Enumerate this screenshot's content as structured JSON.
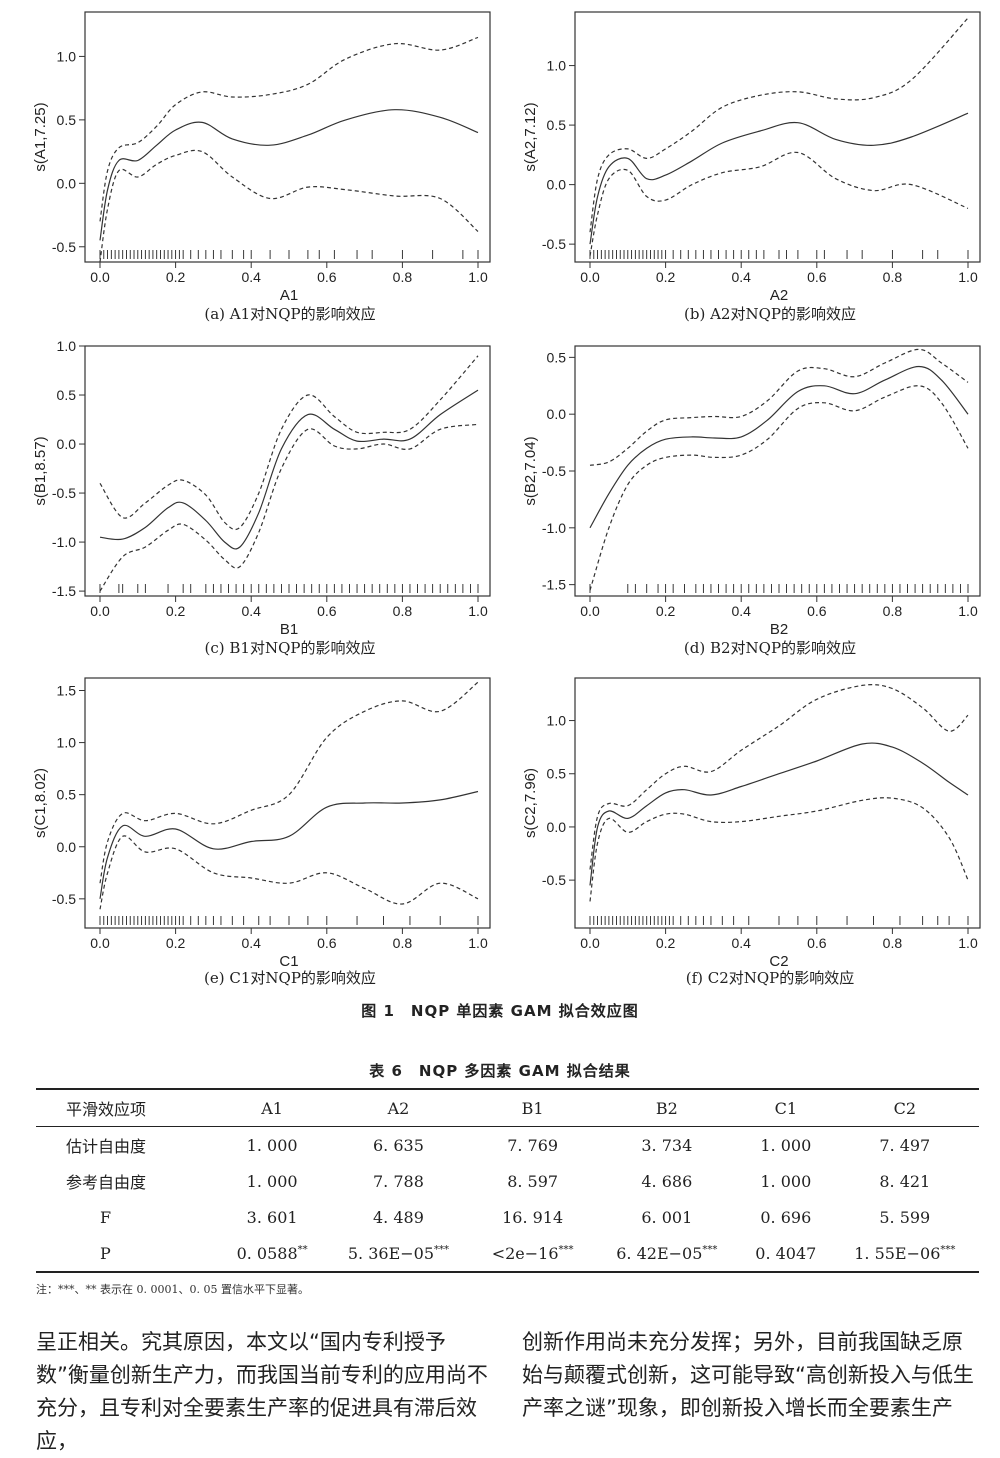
{
  "figure": {
    "title": "图 1　NQP 单因素 GAM 拟合效应图",
    "panels": [
      {
        "caption": "(a) A1对NQP的影响效应",
        "xlabel": "A1",
        "ylabel": "s(A1,7.25)"
      },
      {
        "caption": "(b) A2对NQP的影响效应",
        "xlabel": "A2",
        "ylabel": "s(A2,7.12)"
      },
      {
        "caption": "(c) B1对NQP的影响效应",
        "xlabel": "B1",
        "ylabel": "s(B1,8.57)"
      },
      {
        "caption": "(d) B2对NQP的影响效应",
        "xlabel": "B2",
        "ylabel": "s(B2,7.04)"
      },
      {
        "caption": "(e) C1对NQP的影响效应",
        "xlabel": "C1",
        "ylabel": "s(C1,8.02)"
      },
      {
        "caption": "(f) C2对NQP的影响效应",
        "xlabel": "C2",
        "ylabel": "s(C2,7.96)"
      }
    ]
  },
  "chart_data": [
    {
      "type": "line",
      "xlabel": "A1",
      "ylabel": "s(A1,7.25)",
      "xlim": [
        0,
        1
      ],
      "ylim": [
        -0.62,
        1.35
      ],
      "xticks": [
        "0.0",
        "0.2",
        "0.4",
        "0.6",
        "0.8",
        "1.0"
      ],
      "yticks": [
        "-0.5",
        "0.0",
        "0.5",
        "1.0"
      ],
      "x": [
        0,
        0.02,
        0.05,
        0.1,
        0.15,
        0.2,
        0.27,
        0.35,
        0.45,
        0.55,
        0.65,
        0.78,
        0.9,
        1.0
      ],
      "series": [
        {
          "values": [
            -0.45,
            -0.05,
            0.18,
            0.18,
            0.3,
            0.42,
            0.48,
            0.35,
            0.3,
            0.38,
            0.5,
            0.58,
            0.52,
            0.4
          ]
        },
        {
          "values": [
            -0.3,
            0.1,
            0.28,
            0.32,
            0.45,
            0.62,
            0.72,
            0.68,
            0.7,
            0.78,
            0.98,
            1.1,
            1.05,
            1.15
          ]
        },
        {
          "values": [
            -0.62,
            -0.2,
            0.1,
            0.05,
            0.15,
            0.22,
            0.25,
            0.05,
            -0.12,
            -0.03,
            -0.05,
            -0.1,
            -0.12,
            -0.38
          ]
        }
      ],
      "rug": [
        0.0,
        0.01,
        0.02,
        0.03,
        0.04,
        0.05,
        0.06,
        0.07,
        0.08,
        0.09,
        0.1,
        0.11,
        0.12,
        0.13,
        0.14,
        0.15,
        0.16,
        0.17,
        0.18,
        0.19,
        0.2,
        0.21,
        0.22,
        0.24,
        0.26,
        0.28,
        0.3,
        0.32,
        0.35,
        0.38,
        0.4,
        0.45,
        0.5,
        0.55,
        0.58,
        0.62,
        0.68,
        0.72,
        0.8,
        0.88,
        0.96,
        1.0
      ]
    },
    {
      "type": "line",
      "xlabel": "A2",
      "ylabel": "s(A2,7.12)",
      "xlim": [
        0,
        1
      ],
      "ylim": [
        -0.65,
        1.45
      ],
      "xticks": [
        "0.0",
        "0.2",
        "0.4",
        "0.6",
        "0.8",
        "1.0"
      ],
      "yticks": [
        "-0.5",
        "0.0",
        "0.5",
        "1.0"
      ],
      "x": [
        0,
        0.02,
        0.05,
        0.1,
        0.15,
        0.2,
        0.27,
        0.35,
        0.45,
        0.55,
        0.65,
        0.75,
        0.85,
        1.0
      ],
      "series": [
        {
          "values": [
            -0.5,
            -0.1,
            0.15,
            0.22,
            0.05,
            0.08,
            0.2,
            0.35,
            0.45,
            0.52,
            0.38,
            0.33,
            0.4,
            0.6
          ]
        },
        {
          "values": [
            -0.4,
            0.05,
            0.25,
            0.3,
            0.22,
            0.3,
            0.45,
            0.65,
            0.75,
            0.78,
            0.72,
            0.73,
            0.88,
            1.4
          ]
        },
        {
          "values": [
            -0.6,
            -0.25,
            0.05,
            0.12,
            -0.1,
            -0.13,
            0.0,
            0.1,
            0.15,
            0.27,
            0.05,
            -0.05,
            0.0,
            -0.2
          ]
        }
      ],
      "rug": [
        0.0,
        0.01,
        0.02,
        0.03,
        0.04,
        0.05,
        0.06,
        0.07,
        0.08,
        0.09,
        0.1,
        0.11,
        0.12,
        0.13,
        0.14,
        0.15,
        0.16,
        0.17,
        0.18,
        0.19,
        0.2,
        0.22,
        0.24,
        0.26,
        0.28,
        0.3,
        0.32,
        0.34,
        0.36,
        0.38,
        0.4,
        0.42,
        0.44,
        0.46,
        0.5,
        0.52,
        0.55,
        0.6,
        0.62,
        0.68,
        0.72,
        0.8,
        0.88,
        0.92,
        1.0
      ]
    },
    {
      "type": "line",
      "xlabel": "B1",
      "ylabel": "s(B1,8.57)",
      "xlim": [
        0,
        1
      ],
      "ylim": [
        -1.55,
        1.0
      ],
      "xticks": [
        "0.0",
        "0.2",
        "0.4",
        "0.6",
        "0.8",
        "1.0"
      ],
      "yticks": [
        "-1.5",
        "-1.0",
        "-0.5",
        "0.0",
        "0.5",
        "1.0"
      ],
      "x": [
        0,
        0.06,
        0.12,
        0.18,
        0.22,
        0.28,
        0.33,
        0.37,
        0.42,
        0.48,
        0.55,
        0.62,
        0.68,
        0.75,
        0.82,
        0.9,
        1.0
      ],
      "series": [
        {
          "values": [
            -0.95,
            -0.97,
            -0.85,
            -0.65,
            -0.6,
            -0.78,
            -1.0,
            -1.05,
            -0.7,
            -0.05,
            0.3,
            0.15,
            0.03,
            0.05,
            0.05,
            0.3,
            0.55
          ]
        },
        {
          "values": [
            -0.4,
            -0.75,
            -0.6,
            -0.42,
            -0.37,
            -0.52,
            -0.8,
            -0.85,
            -0.5,
            0.15,
            0.5,
            0.28,
            0.12,
            0.12,
            0.15,
            0.45,
            0.9
          ]
        },
        {
          "values": [
            -1.5,
            -1.15,
            -1.05,
            -0.88,
            -0.82,
            -0.98,
            -1.18,
            -1.25,
            -0.9,
            -0.25,
            0.15,
            -0.02,
            -0.05,
            0.0,
            -0.05,
            0.15,
            0.2
          ]
        }
      ],
      "rug": [
        0.0,
        0.05,
        0.06,
        0.1,
        0.12,
        0.18,
        0.22,
        0.24,
        0.28,
        0.3,
        0.32,
        0.34,
        0.36,
        0.38,
        0.4,
        0.42,
        0.44,
        0.46,
        0.48,
        0.5,
        0.52,
        0.54,
        0.56,
        0.58,
        0.6,
        0.62,
        0.64,
        0.66,
        0.68,
        0.7,
        0.72,
        0.74,
        0.76,
        0.78,
        0.8,
        0.82,
        0.84,
        0.86,
        0.88,
        0.9,
        0.92,
        0.94,
        0.96,
        0.98,
        1.0
      ]
    },
    {
      "type": "line",
      "xlabel": "B2",
      "ylabel": "s(B2,7.04)",
      "xlim": [
        0,
        1
      ],
      "ylim": [
        -1.6,
        0.6
      ],
      "xticks": [
        "0.0",
        "0.2",
        "0.4",
        "0.6",
        "0.8",
        "1.0"
      ],
      "yticks": [
        "-1.5",
        "-1.0",
        "-0.5",
        "0.0",
        "0.5"
      ],
      "x": [
        0,
        0.05,
        0.1,
        0.15,
        0.2,
        0.27,
        0.33,
        0.4,
        0.47,
        0.55,
        0.62,
        0.7,
        0.78,
        0.87,
        0.93,
        1.0
      ],
      "series": [
        {
          "values": [
            -1.0,
            -0.7,
            -0.45,
            -0.3,
            -0.22,
            -0.2,
            -0.21,
            -0.2,
            -0.05,
            0.2,
            0.25,
            0.18,
            0.3,
            0.42,
            0.3,
            0.0
          ]
        },
        {
          "values": [
            -0.45,
            -0.42,
            -0.3,
            -0.15,
            -0.05,
            -0.03,
            -0.02,
            -0.02,
            0.12,
            0.38,
            0.4,
            0.33,
            0.45,
            0.57,
            0.45,
            0.28
          ]
        },
        {
          "values": [
            -1.55,
            -1.0,
            -0.62,
            -0.45,
            -0.38,
            -0.36,
            -0.38,
            -0.36,
            -0.22,
            0.05,
            0.1,
            0.03,
            0.15,
            0.25,
            0.1,
            -0.3
          ]
        }
      ],
      "rug": [
        0.0,
        0.1,
        0.12,
        0.15,
        0.18,
        0.2,
        0.22,
        0.25,
        0.28,
        0.3,
        0.32,
        0.34,
        0.36,
        0.38,
        0.4,
        0.42,
        0.44,
        0.46,
        0.48,
        0.5,
        0.52,
        0.54,
        0.56,
        0.58,
        0.6,
        0.62,
        0.64,
        0.66,
        0.68,
        0.7,
        0.72,
        0.74,
        0.76,
        0.78,
        0.8,
        0.82,
        0.84,
        0.86,
        0.88,
        0.9,
        0.92,
        0.94,
        0.96,
        0.98,
        1.0
      ]
    },
    {
      "type": "line",
      "xlabel": "C1",
      "ylabel": "s(C1,8.02)",
      "xlim": [
        0,
        1
      ],
      "ylim": [
        -0.78,
        1.62
      ],
      "xticks": [
        "0.0",
        "0.2",
        "0.4",
        "0.6",
        "0.8",
        "1.0"
      ],
      "yticks": [
        "-0.5",
        "0.0",
        "0.5",
        "1.0",
        "1.5"
      ],
      "x": [
        0,
        0.02,
        0.06,
        0.12,
        0.2,
        0.3,
        0.4,
        0.5,
        0.6,
        0.7,
        0.8,
        0.9,
        1.0
      ],
      "series": [
        {
          "values": [
            -0.5,
            -0.1,
            0.2,
            0.1,
            0.17,
            -0.02,
            0.05,
            0.1,
            0.38,
            0.42,
            0.42,
            0.45,
            0.53
          ]
        },
        {
          "values": [
            -0.35,
            0.05,
            0.32,
            0.25,
            0.32,
            0.22,
            0.35,
            0.5,
            1.05,
            1.3,
            1.4,
            1.3,
            1.58
          ]
        },
        {
          "values": [
            -0.6,
            -0.25,
            0.1,
            -0.05,
            -0.02,
            -0.25,
            -0.3,
            -0.35,
            -0.25,
            -0.4,
            -0.55,
            -0.35,
            -0.5
          ]
        }
      ],
      "rug": [
        0.0,
        0.01,
        0.02,
        0.03,
        0.04,
        0.05,
        0.06,
        0.07,
        0.08,
        0.09,
        0.1,
        0.11,
        0.12,
        0.13,
        0.14,
        0.15,
        0.16,
        0.17,
        0.18,
        0.19,
        0.2,
        0.21,
        0.22,
        0.24,
        0.26,
        0.28,
        0.3,
        0.32,
        0.35,
        0.38,
        0.42,
        0.45,
        0.5,
        0.55,
        0.6,
        0.68,
        0.75,
        0.82,
        0.9,
        1.0
      ]
    },
    {
      "type": "line",
      "xlabel": "C2",
      "ylabel": "s(C2,7.96)",
      "xlim": [
        0,
        1
      ],
      "ylim": [
        -0.95,
        1.4
      ],
      "xticks": [
        "0.0",
        "0.2",
        "0.4",
        "0.6",
        "0.8",
        "1.0"
      ],
      "yticks": [
        "-0.5",
        "0.0",
        "0.5",
        "1.0"
      ],
      "x": [
        0,
        0.02,
        0.05,
        0.1,
        0.15,
        0.2,
        0.25,
        0.32,
        0.4,
        0.5,
        0.6,
        0.72,
        0.8,
        0.88,
        0.95,
        1.0
      ],
      "series": [
        {
          "values": [
            -0.55,
            0.0,
            0.15,
            0.08,
            0.2,
            0.32,
            0.35,
            0.3,
            0.38,
            0.5,
            0.62,
            0.78,
            0.75,
            0.6,
            0.42,
            0.3
          ]
        },
        {
          "values": [
            -0.4,
            0.1,
            0.22,
            0.2,
            0.35,
            0.5,
            0.57,
            0.52,
            0.72,
            0.95,
            1.2,
            1.33,
            1.3,
            1.12,
            0.9,
            1.05
          ]
        },
        {
          "values": [
            -0.7,
            -0.15,
            0.08,
            -0.05,
            0.05,
            0.12,
            0.12,
            0.05,
            0.05,
            0.1,
            0.15,
            0.25,
            0.27,
            0.18,
            -0.1,
            -0.5
          ]
        }
      ],
      "rug": [
        0.0,
        0.01,
        0.02,
        0.03,
        0.04,
        0.05,
        0.06,
        0.07,
        0.08,
        0.09,
        0.1,
        0.11,
        0.12,
        0.13,
        0.14,
        0.15,
        0.16,
        0.17,
        0.18,
        0.19,
        0.2,
        0.21,
        0.22,
        0.24,
        0.26,
        0.28,
        0.3,
        0.32,
        0.35,
        0.38,
        0.42,
        0.5,
        0.55,
        0.6,
        0.68,
        0.75,
        0.82,
        0.88,
        0.92,
        0.95,
        1.0
      ]
    }
  ],
  "table": {
    "title": "表 6　NQP 多因素 GAM 拟合结果",
    "headers": [
      "平滑效应项",
      "A1",
      "A2",
      "B1",
      "B2",
      "C1",
      "C2"
    ],
    "rows": [
      {
        "label": "估计自由度",
        "cells": [
          "1. 000",
          "6. 635",
          "7. 769",
          "3. 734",
          "1. 000",
          "7. 497"
        ],
        "sups": [
          "",
          "",
          "",
          "",
          "",
          ""
        ]
      },
      {
        "label": "参考自由度",
        "cells": [
          "1. 000",
          "7. 788",
          "8. 597",
          "4. 686",
          "1. 000",
          "8. 421"
        ],
        "sups": [
          "",
          "",
          "",
          "",
          "",
          ""
        ]
      },
      {
        "label": "F",
        "cells": [
          "3. 601",
          "4. 489",
          "16. 914",
          "6. 001",
          "0. 696",
          "5. 599"
        ],
        "sups": [
          "",
          "",
          "",
          "",
          "",
          ""
        ]
      },
      {
        "label": "P",
        "cells": [
          "0. 0588",
          "5. 36E−05",
          "<2e−16",
          "6. 42E−05",
          "0. 4047",
          "1. 55E−06"
        ],
        "sups": [
          "**",
          "***",
          "***",
          "***",
          "",
          "***"
        ]
      }
    ],
    "note": "注：***、** 表示在 0. 0001、0. 05 置信水平下显著。"
  },
  "body_text": {
    "left": "呈正相关。究其原因，本文以“国内专利授予数”衡量创新生产力，而我国当前专利的应用尚不充分，且专利对全要素生产率的促进具有滞后效应，",
    "right": "创新作用尚未充分发挥；另外，目前我国缺乏原始与颠覆式创新，这可能导致“高创新投入与低生产率之谜”现象，即创新投入增长而全要素生产"
  }
}
